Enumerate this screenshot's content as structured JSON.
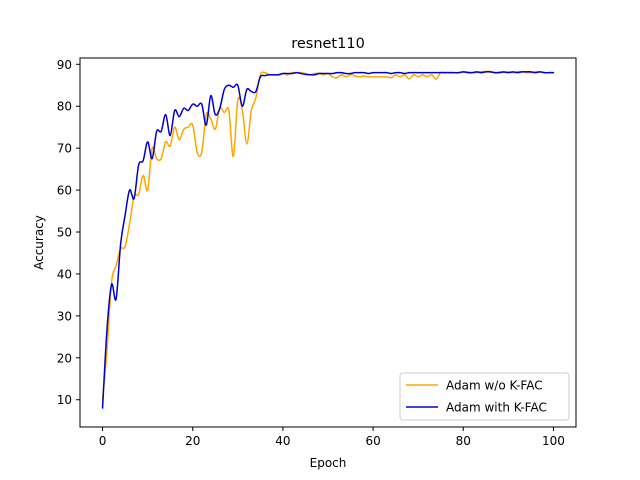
{
  "chart_data": {
    "type": "line",
    "title": "resnet110",
    "xlabel": "Epoch",
    "ylabel": "Accuracy",
    "xlim": [
      -5,
      105
    ],
    "ylim": [
      3.5,
      91.5
    ],
    "xticks": [
      0,
      20,
      40,
      60,
      80,
      100
    ],
    "yticks": [
      10,
      20,
      30,
      40,
      50,
      60,
      70,
      80,
      90
    ],
    "grid": false,
    "legend_position": "bottom-right",
    "series": [
      {
        "name": "Adam w/o K-FAC",
        "color": "#ffa500",
        "x": [
          0,
          1,
          2,
          3,
          4,
          5,
          6,
          7,
          8,
          9,
          10,
          11,
          12,
          13,
          14,
          15,
          16,
          17,
          18,
          19,
          20,
          21,
          22,
          23,
          24,
          25,
          26,
          27,
          28,
          29,
          30,
          31,
          32,
          33,
          34,
          35,
          36,
          37,
          38,
          39,
          40,
          41,
          42,
          43,
          44,
          45,
          46,
          47,
          48,
          49,
          50,
          51,
          52,
          53,
          54,
          55,
          56,
          57,
          58,
          59,
          60,
          61,
          62,
          63,
          64,
          65,
          66,
          67,
          68,
          69,
          70,
          71,
          72,
          73,
          74,
          75,
          76,
          77,
          78,
          79,
          80,
          81,
          82,
          83,
          84,
          85,
          86,
          87,
          88,
          89,
          90,
          91,
          92,
          93,
          94,
          95,
          96,
          97,
          98,
          99,
          100
        ],
        "y": [
          10,
          22,
          38,
          42,
          46,
          46.5,
          52,
          58.5,
          59,
          63.5,
          60,
          70,
          67.5,
          67.5,
          71.5,
          70.5,
          75,
          72,
          74.5,
          75,
          75.5,
          69,
          69,
          78,
          77,
          74.5,
          79.5,
          78.5,
          79,
          68,
          81.5,
          79,
          71,
          79,
          82,
          87.5,
          88,
          87.5,
          87.5,
          87.5,
          87.8,
          87.5,
          88,
          88,
          88,
          87.8,
          87.5,
          87.8,
          87.8,
          87.5,
          87.8,
          87,
          86.8,
          87.5,
          87,
          87.5,
          87.2,
          87,
          87.2,
          87,
          87,
          87,
          87,
          87,
          86.8,
          87.5,
          87,
          87.5,
          86.5,
          87.5,
          87,
          87.5,
          87,
          87.5,
          86.5,
          88,
          88,
          88,
          88,
          88,
          88.2,
          88.2,
          88,
          88,
          88.2,
          88.3,
          88.3,
          88,
          88.2,
          88,
          88.2,
          88,
          88.2,
          88.2,
          88,
          88,
          88.2,
          88.2,
          88,
          88,
          88
        ]
      },
      {
        "name": "Adam with K-FAC",
        "color": "#0000cd",
        "x": [
          0,
          1,
          2,
          3,
          4,
          5,
          6,
          7,
          8,
          9,
          10,
          11,
          12,
          13,
          14,
          15,
          16,
          17,
          18,
          19,
          20,
          21,
          22,
          23,
          24,
          25,
          26,
          27,
          28,
          29,
          30,
          31,
          32,
          33,
          34,
          35,
          36,
          37,
          38,
          39,
          40,
          41,
          42,
          43,
          44,
          45,
          46,
          47,
          48,
          49,
          50,
          51,
          52,
          53,
          54,
          55,
          56,
          57,
          58,
          59,
          60,
          61,
          62,
          63,
          64,
          65,
          66,
          67,
          68,
          69,
          70,
          71,
          72,
          73,
          74,
          75,
          76,
          77,
          78,
          79,
          80,
          81,
          82,
          83,
          84,
          85,
          86,
          87,
          88,
          89,
          90,
          91,
          92,
          93,
          94,
          95,
          96,
          97,
          98,
          99,
          100
        ],
        "y": [
          8,
          27,
          37.5,
          34,
          47,
          54,
          60,
          58,
          66,
          67,
          71.5,
          67.5,
          74,
          74,
          78,
          73,
          79,
          77.5,
          79.5,
          79,
          80.5,
          80,
          80.5,
          75.5,
          82.5,
          78,
          79.5,
          84,
          85,
          84.5,
          85,
          80,
          84,
          83.5,
          83.5,
          87,
          87.3,
          87.5,
          87.5,
          87.5,
          87.8,
          87.8,
          87.8,
          88,
          87.8,
          87.6,
          87.5,
          87.5,
          87.8,
          87.8,
          87.8,
          87.8,
          88,
          88,
          87.8,
          87.8,
          88,
          88,
          88,
          87.8,
          88,
          88,
          88,
          88,
          87.8,
          88,
          88,
          87.8,
          88,
          88,
          88,
          88,
          88,
          88,
          88,
          88,
          88,
          88,
          88,
          88,
          88.2,
          88,
          88,
          88.2,
          88,
          88.2,
          88.2,
          88,
          88,
          88.2,
          88,
          88.2,
          88,
          88.2,
          88.2,
          88.2,
          88,
          88.2,
          88,
          88,
          88
        ]
      }
    ]
  }
}
